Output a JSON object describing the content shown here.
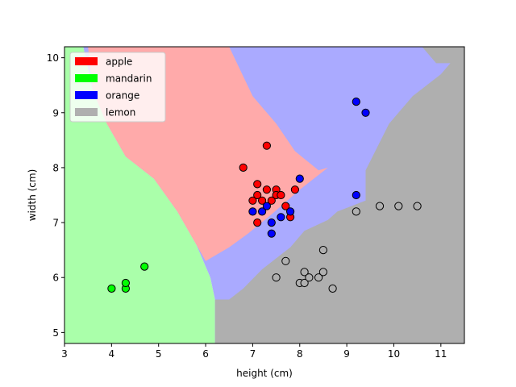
{
  "chart_data": {
    "type": "scatter",
    "title": "",
    "xlabel": "height (cm)",
    "ylabel": "width (cm)",
    "xlim": [
      3.0,
      11.5
    ],
    "ylim": [
      4.8,
      10.2
    ],
    "xticks": [
      3,
      4,
      5,
      6,
      7,
      8,
      9,
      10,
      11
    ],
    "yticks": [
      5,
      6,
      7,
      8,
      9,
      10
    ],
    "grid": false,
    "legend_placement": "top-left",
    "legend": [
      {
        "label": "apple",
        "color": "#ff0000"
      },
      {
        "label": "mandarin",
        "color": "#00ff00"
      },
      {
        "label": "orange",
        "color": "#0000ff"
      },
      {
        "label": "lemon",
        "color": "#afafaf"
      }
    ],
    "decision_regions": [
      {
        "class": "mandarin",
        "color": "#aaffaa",
        "polygon": [
          [
            3.0,
            10.2
          ],
          [
            3.4,
            10.2
          ],
          [
            3.6,
            9.4
          ],
          [
            3.9,
            8.8
          ],
          [
            4.3,
            8.2
          ],
          [
            4.9,
            7.8
          ],
          [
            5.4,
            7.2
          ],
          [
            5.8,
            6.6
          ],
          [
            6.1,
            6.0
          ],
          [
            6.2,
            5.6
          ],
          [
            6.2,
            4.8
          ],
          [
            3.0,
            4.8
          ]
        ]
      },
      {
        "class": "orange",
        "color": "#aaaaff",
        "polygon": [
          [
            3.4,
            10.2
          ],
          [
            3.6,
            9.4
          ],
          [
            3.9,
            8.8
          ],
          [
            4.3,
            8.2
          ],
          [
            4.9,
            7.8
          ],
          [
            5.4,
            7.2
          ],
          [
            5.8,
            6.6
          ],
          [
            6.1,
            6.0
          ],
          [
            6.2,
            5.6
          ],
          [
            6.2,
            4.8
          ],
          [
            11.5,
            4.8
          ],
          [
            11.5,
            10.2
          ]
        ]
      },
      {
        "class": "apple",
        "color": "#ffaaaa",
        "polygon": [
          [
            3.5,
            10.2
          ],
          [
            6.5,
            10.2
          ],
          [
            7.0,
            9.3
          ],
          [
            7.5,
            8.8
          ],
          [
            7.9,
            8.3
          ],
          [
            8.4,
            7.95
          ],
          [
            8.6,
            8.0
          ],
          [
            8.0,
            7.6
          ],
          [
            7.4,
            7.15
          ],
          [
            6.9,
            6.8
          ],
          [
            6.5,
            6.55
          ],
          [
            6.0,
            6.3
          ],
          [
            5.8,
            6.6
          ],
          [
            5.4,
            7.2
          ],
          [
            4.9,
            7.8
          ],
          [
            4.3,
            8.2
          ],
          [
            3.9,
            8.8
          ],
          [
            3.6,
            9.4
          ]
        ]
      },
      {
        "class": "lemon",
        "color": "#afafaf",
        "polygon": [
          [
            6.2,
            4.8
          ],
          [
            6.2,
            5.6
          ],
          [
            6.5,
            5.6
          ],
          [
            6.8,
            5.8
          ],
          [
            7.2,
            6.15
          ],
          [
            7.8,
            6.55
          ],
          [
            8.1,
            6.85
          ],
          [
            8.6,
            7.05
          ],
          [
            8.8,
            7.2
          ],
          [
            9.4,
            7.4
          ],
          [
            9.4,
            7.95
          ],
          [
            9.9,
            8.8
          ],
          [
            10.4,
            9.3
          ],
          [
            11.0,
            9.7
          ],
          [
            11.5,
            10.2
          ],
          [
            11.5,
            4.8
          ]
        ]
      },
      {
        "class": "lemon",
        "color": "#afafaf",
        "polygon": [
          [
            10.6,
            10.2
          ],
          [
            10.9,
            9.9
          ],
          [
            11.5,
            9.9
          ],
          [
            11.5,
            10.2
          ]
        ]
      }
    ],
    "series": [
      {
        "name": "apple",
        "color": "#ff0000",
        "points": [
          [
            6.8,
            8.0
          ],
          [
            7.3,
            8.4
          ],
          [
            7.0,
            7.4
          ],
          [
            7.1,
            7.5
          ],
          [
            7.1,
            7.7
          ],
          [
            7.2,
            7.4
          ],
          [
            7.3,
            7.6
          ],
          [
            7.4,
            7.4
          ],
          [
            7.5,
            7.6
          ],
          [
            7.5,
            7.5
          ],
          [
            7.6,
            7.5
          ],
          [
            7.7,
            7.3
          ],
          [
            7.8,
            7.1
          ],
          [
            7.9,
            7.6
          ],
          [
            7.1,
            7.0
          ]
        ]
      },
      {
        "name": "mandarin",
        "color": "#00ff00",
        "points": [
          [
            4.0,
            5.8
          ],
          [
            4.3,
            5.8
          ],
          [
            4.3,
            5.9
          ],
          [
            4.7,
            6.2
          ]
        ]
      },
      {
        "name": "orange",
        "color": "#0000ff",
        "points": [
          [
            7.0,
            7.2
          ],
          [
            7.2,
            7.2
          ],
          [
            7.3,
            7.3
          ],
          [
            7.4,
            7.0
          ],
          [
            7.4,
            6.8
          ],
          [
            7.6,
            7.1
          ],
          [
            7.8,
            7.2
          ],
          [
            8.0,
            7.8
          ],
          [
            9.2,
            9.2
          ],
          [
            9.4,
            9.0
          ],
          [
            9.2,
            7.5
          ]
        ]
      },
      {
        "name": "lemon",
        "color": "#afafaf",
        "points": [
          [
            7.5,
            6.0
          ],
          [
            7.7,
            6.3
          ],
          [
            8.0,
            5.9
          ],
          [
            8.1,
            6.1
          ],
          [
            8.1,
            5.9
          ],
          [
            8.2,
            6.0
          ],
          [
            8.4,
            6.0
          ],
          [
            8.5,
            6.1
          ],
          [
            8.5,
            6.5
          ],
          [
            8.7,
            5.8
          ],
          [
            9.2,
            7.2
          ],
          [
            9.7,
            7.3
          ],
          [
            10.1,
            7.3
          ],
          [
            10.5,
            7.3
          ]
        ]
      }
    ]
  }
}
